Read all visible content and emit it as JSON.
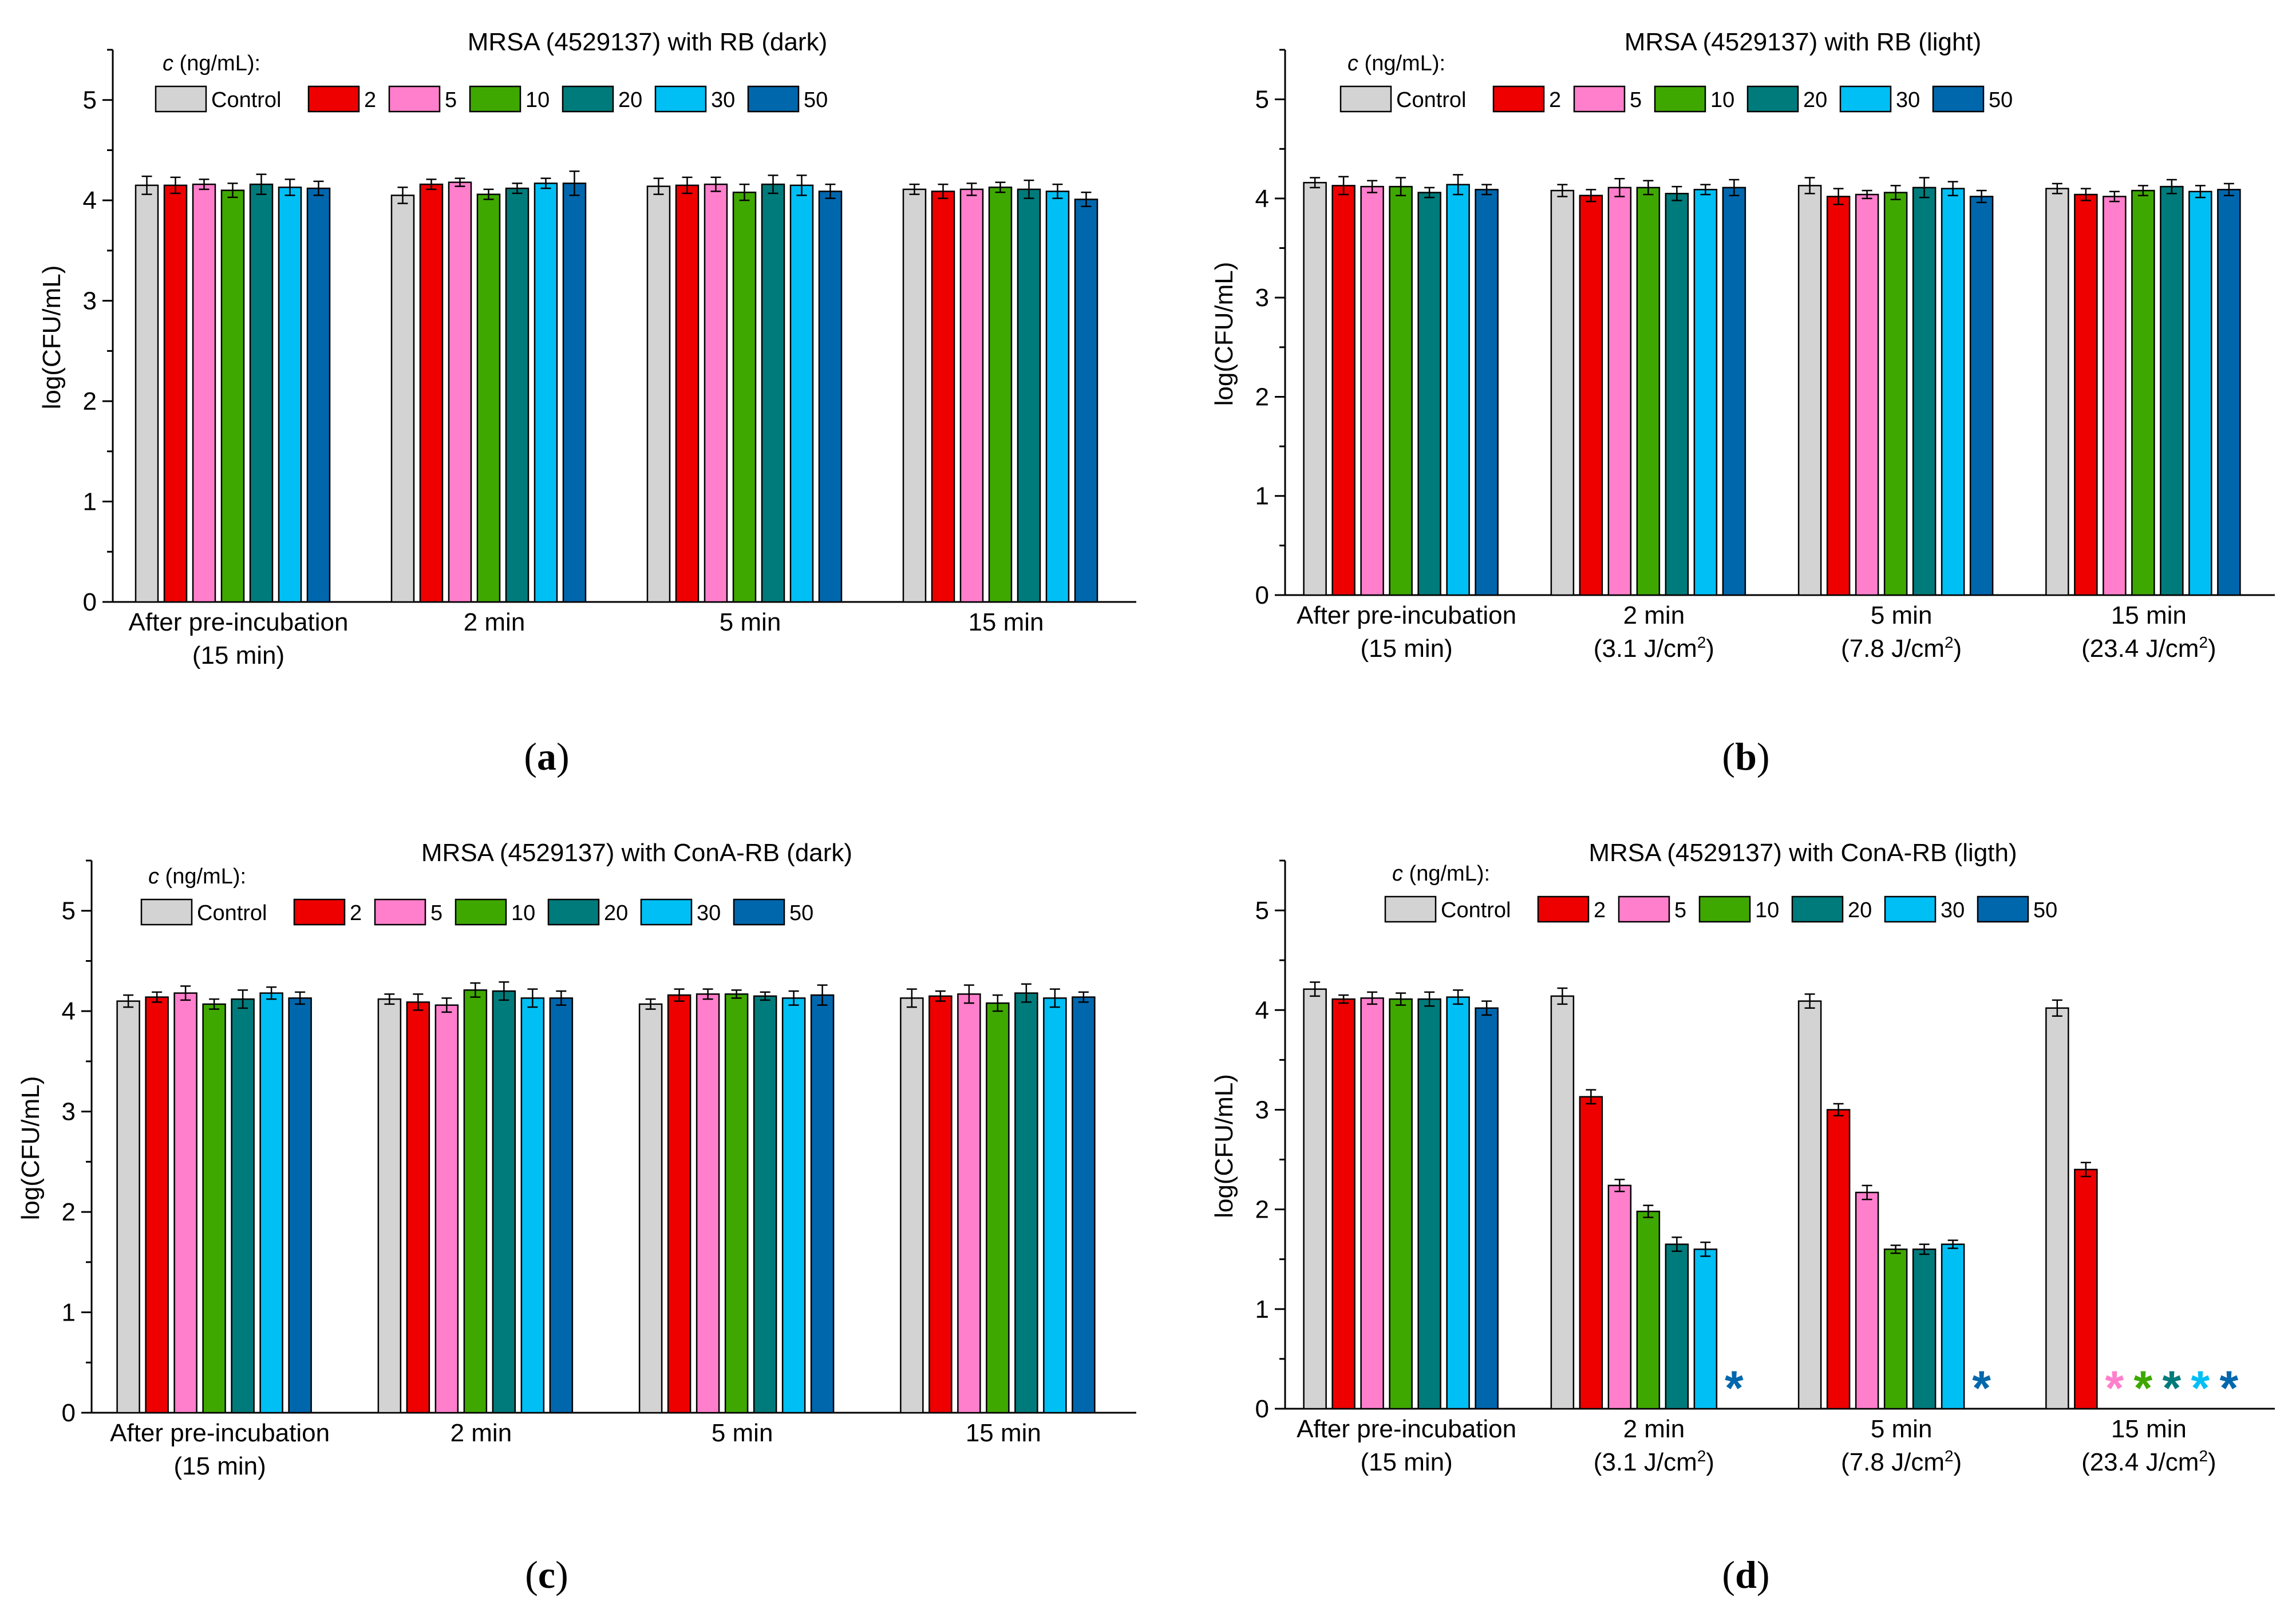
{
  "colors": {
    "Control": "#d3d3d3",
    "2": "#ee0000",
    "5": "#ff7fcc",
    "10": "#3fa800",
    "20": "#007b7b",
    "30": "#00bff5",
    "50": "#0067ad"
  },
  "chart_data": [
    {
      "type": "bar",
      "panel_label": "(a)",
      "title": "MRSA (4529137) with RB (dark)",
      "xlabel": "",
      "ylabel": "log(CFU/mL)",
      "ylim": [
        0,
        5.5
      ],
      "yticks": [
        0,
        1,
        2,
        3,
        4,
        5
      ],
      "legend_title": "c (ng/mL):",
      "legend_placement": "top-left",
      "categories": [
        [
          "After pre-incubation",
          "(15 min)"
        ],
        [
          "2 min"
        ],
        [
          "5 min"
        ],
        [
          "15 min"
        ]
      ],
      "series": [
        {
          "name": "Control",
          "values": [
            4.15,
            4.05,
            4.14,
            4.11
          ],
          "errors": [
            0.09,
            0.08,
            0.08,
            0.05
          ],
          "markers": [
            null,
            null,
            null,
            null
          ]
        },
        {
          "name": "2",
          "values": [
            4.15,
            4.16,
            4.15,
            4.09
          ],
          "errors": [
            0.08,
            0.05,
            0.08,
            0.07
          ],
          "markers": [
            null,
            null,
            null,
            null
          ]
        },
        {
          "name": "5",
          "values": [
            4.16,
            4.18,
            4.16,
            4.11
          ],
          "errors": [
            0.05,
            0.04,
            0.07,
            0.06
          ],
          "markers": [
            null,
            null,
            null,
            null
          ]
        },
        {
          "name": "10",
          "values": [
            4.1,
            4.06,
            4.08,
            4.13
          ],
          "errors": [
            0.07,
            0.05,
            0.08,
            0.05
          ],
          "markers": [
            null,
            null,
            null,
            null
          ]
        },
        {
          "name": "20",
          "values": [
            4.16,
            4.12,
            4.16,
            4.11
          ],
          "errors": [
            0.1,
            0.05,
            0.09,
            0.09
          ],
          "markers": [
            null,
            null,
            null,
            null
          ]
        },
        {
          "name": "30",
          "values": [
            4.13,
            4.17,
            4.15,
            4.09
          ],
          "errors": [
            0.08,
            0.05,
            0.1,
            0.07
          ],
          "markers": [
            null,
            null,
            null,
            null
          ]
        },
        {
          "name": "50",
          "values": [
            4.12,
            4.17,
            4.09,
            4.01
          ],
          "errors": [
            0.07,
            0.12,
            0.07,
            0.07
          ],
          "markers": [
            null,
            null,
            null,
            null
          ]
        }
      ]
    },
    {
      "type": "bar",
      "panel_label": "(b)",
      "title": "MRSA (4529137) with RB (light)",
      "xlabel": "",
      "ylabel": "log(CFU/mL)",
      "ylim": [
        0,
        5.5
      ],
      "yticks": [
        0,
        1,
        2,
        3,
        4,
        5
      ],
      "legend_title": "c (ng/mL):",
      "legend_placement": "top-left",
      "categories": [
        [
          "After pre-incubation",
          "(15 min)"
        ],
        [
          "2 min",
          "(3.1 J/cm²)"
        ],
        [
          "5 min",
          "(7.8 J/cm²)"
        ],
        [
          "15 min",
          "(23.4 J/cm²)"
        ]
      ],
      "series": [
        {
          "name": "Control",
          "values": [
            4.16,
            4.08,
            4.13,
            4.1
          ],
          "errors": [
            0.05,
            0.06,
            0.08,
            0.05
          ],
          "markers": [
            null,
            null,
            null,
            null
          ]
        },
        {
          "name": "2",
          "values": [
            4.13,
            4.03,
            4.02,
            4.04
          ],
          "errors": [
            0.09,
            0.06,
            0.08,
            0.06
          ],
          "markers": [
            null,
            null,
            null,
            null
          ]
        },
        {
          "name": "5",
          "values": [
            4.12,
            4.11,
            4.04,
            4.02
          ],
          "errors": [
            0.06,
            0.09,
            0.04,
            0.05
          ],
          "markers": [
            null,
            null,
            null,
            null
          ]
        },
        {
          "name": "10",
          "values": [
            4.12,
            4.11,
            4.06,
            4.08
          ],
          "errors": [
            0.09,
            0.07,
            0.07,
            0.05
          ],
          "markers": [
            null,
            null,
            null,
            null
          ]
        },
        {
          "name": "20",
          "values": [
            4.06,
            4.05,
            4.11,
            4.12
          ],
          "errors": [
            0.05,
            0.07,
            0.1,
            0.07
          ],
          "markers": [
            null,
            null,
            null,
            null
          ]
        },
        {
          "name": "30",
          "values": [
            4.14,
            4.09,
            4.1,
            4.07
          ],
          "errors": [
            0.1,
            0.05,
            0.07,
            0.06
          ],
          "markers": [
            null,
            null,
            null,
            null
          ]
        },
        {
          "name": "50",
          "values": [
            4.09,
            4.11,
            4.02,
            4.09
          ],
          "errors": [
            0.05,
            0.08,
            0.06,
            0.06
          ],
          "markers": [
            null,
            null,
            null,
            null
          ]
        }
      ]
    },
    {
      "type": "bar",
      "panel_label": "(c)",
      "title": "MRSA (4529137) with ConA-RB (dark)",
      "xlabel": "",
      "ylabel": "log(CFU/mL)",
      "ylim": [
        0,
        5.5
      ],
      "yticks": [
        0,
        1,
        2,
        3,
        4,
        5
      ],
      "legend_title": "c (ng/mL):",
      "legend_placement": "top-left",
      "categories": [
        [
          "After pre-incubation",
          "(15 min)"
        ],
        [
          "2 min"
        ],
        [
          "5 min"
        ],
        [
          "15 min"
        ]
      ],
      "series": [
        {
          "name": "Control",
          "values": [
            4.1,
            4.12,
            4.07,
            4.13
          ],
          "errors": [
            0.06,
            0.05,
            0.05,
            0.09
          ],
          "markers": [
            null,
            null,
            null,
            null
          ]
        },
        {
          "name": "2",
          "values": [
            4.14,
            4.09,
            4.16,
            4.15
          ],
          "errors": [
            0.05,
            0.08,
            0.06,
            0.05
          ],
          "markers": [
            null,
            null,
            null,
            null
          ]
        },
        {
          "name": "5",
          "values": [
            4.18,
            4.06,
            4.17,
            4.17
          ],
          "errors": [
            0.07,
            0.07,
            0.05,
            0.09
          ],
          "markers": [
            null,
            null,
            null,
            null
          ]
        },
        {
          "name": "10",
          "values": [
            4.07,
            4.21,
            4.17,
            4.08
          ],
          "errors": [
            0.05,
            0.07,
            0.04,
            0.08
          ],
          "markers": [
            null,
            null,
            null,
            null
          ]
        },
        {
          "name": "20",
          "values": [
            4.12,
            4.2,
            4.15,
            4.18
          ],
          "errors": [
            0.09,
            0.09,
            0.04,
            0.09
          ],
          "markers": [
            null,
            null,
            null,
            null
          ]
        },
        {
          "name": "30",
          "values": [
            4.18,
            4.13,
            4.13,
            4.13
          ],
          "errors": [
            0.06,
            0.09,
            0.07,
            0.09
          ],
          "markers": [
            null,
            null,
            null,
            null
          ]
        },
        {
          "name": "50",
          "values": [
            4.13,
            4.13,
            4.16,
            4.14
          ],
          "errors": [
            0.06,
            0.07,
            0.1,
            0.05
          ],
          "markers": [
            null,
            null,
            null,
            null
          ]
        }
      ]
    },
    {
      "type": "bar",
      "panel_label": "(d)",
      "title": "MRSA (4529137) with ConA-RB (ligth)",
      "xlabel": "",
      "ylabel": "log(CFU/mL)",
      "ylim": [
        0,
        5.5
      ],
      "yticks": [
        0,
        1,
        2,
        3,
        4,
        5
      ],
      "legend_title": "c (ng/mL):",
      "legend_placement": "top-left",
      "categories": [
        [
          "After pre-incubation",
          "(15 min)"
        ],
        [
          "2 min",
          "(3.1 J/cm²)"
        ],
        [
          "5 min",
          "(7.8 J/cm²)"
        ],
        [
          "15 min",
          "(23.4 J/cm²)"
        ]
      ],
      "series": [
        {
          "name": "Control",
          "values": [
            4.21,
            4.14,
            4.09,
            4.02
          ],
          "errors": [
            0.07,
            0.08,
            0.07,
            0.08
          ],
          "markers": [
            null,
            null,
            null,
            null
          ]
        },
        {
          "name": "2",
          "values": [
            4.11,
            3.13,
            3.0,
            2.4
          ],
          "errors": [
            0.04,
            0.07,
            0.06,
            0.07
          ],
          "markers": [
            null,
            null,
            null,
            null
          ]
        },
        {
          "name": "5",
          "values": [
            4.12,
            2.24,
            2.17,
            0
          ],
          "errors": [
            0.06,
            0.06,
            0.07,
            0
          ],
          "markers": [
            null,
            null,
            null,
            "*"
          ]
        },
        {
          "name": "10",
          "values": [
            4.11,
            1.98,
            1.6,
            0
          ],
          "errors": [
            0.06,
            0.06,
            0.04,
            0
          ],
          "markers": [
            null,
            null,
            null,
            "*"
          ]
        },
        {
          "name": "20",
          "values": [
            4.11,
            1.65,
            1.6,
            0
          ],
          "errors": [
            0.07,
            0.07,
            0.05,
            0
          ],
          "markers": [
            null,
            null,
            null,
            "*"
          ]
        },
        {
          "name": "30",
          "values": [
            4.13,
            1.6,
            1.65,
            0
          ],
          "errors": [
            0.07,
            0.07,
            0.04,
            0
          ],
          "markers": [
            null,
            null,
            null,
            "*"
          ]
        },
        {
          "name": "50",
          "values": [
            4.02,
            0,
            0,
            0
          ],
          "errors": [
            0.07,
            0,
            0,
            0
          ],
          "markers": [
            null,
            "*",
            "*",
            "*"
          ]
        }
      ]
    }
  ]
}
